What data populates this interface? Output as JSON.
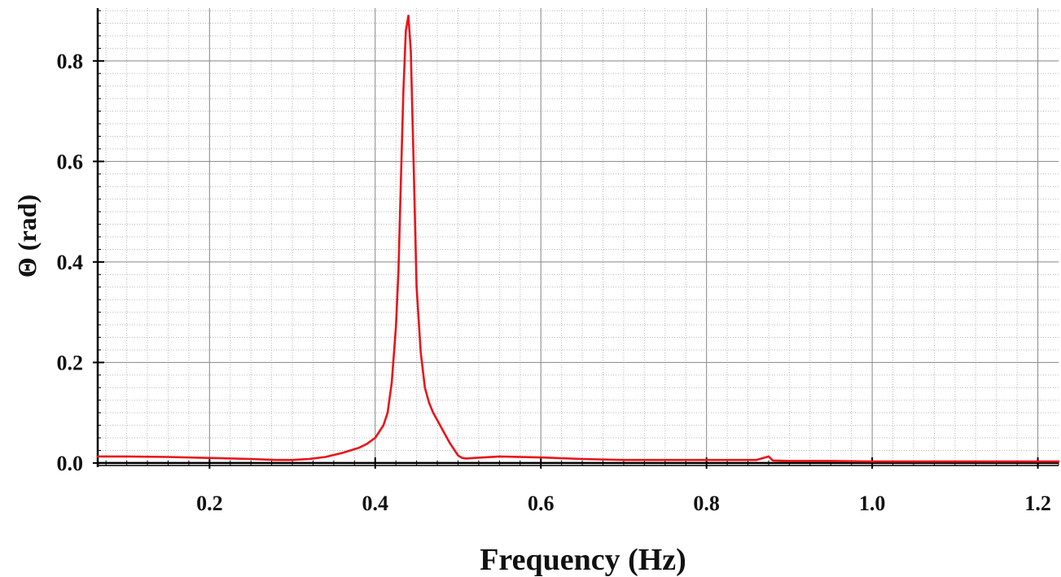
{
  "chart_data": {
    "type": "line",
    "xlabel": "Frequency (Hz)",
    "ylabel": "Θ (rad)",
    "xlim": [
      0.065,
      1.225
    ],
    "ylim": [
      -0.005,
      0.905
    ],
    "grid": true,
    "minor_grid": true,
    "x_ticks": [
      0.2,
      0.4,
      0.6,
      0.8,
      1.0,
      1.2
    ],
    "x_tick_labels": [
      "0.2",
      "0.4",
      "0.6",
      "0.8",
      "1.0",
      "1.2"
    ],
    "y_ticks": [
      0.0,
      0.2,
      0.4,
      0.6,
      0.8
    ],
    "y_tick_labels": [
      "0.0",
      "0.2",
      "0.4",
      "0.6",
      "0.8"
    ],
    "line_color": "#e8141b",
    "series": [
      {
        "name": "",
        "x": [
          0.065,
          0.1,
          0.15,
          0.2,
          0.25,
          0.28,
          0.3,
          0.32,
          0.34,
          0.36,
          0.37,
          0.38,
          0.39,
          0.4,
          0.41,
          0.415,
          0.42,
          0.425,
          0.428,
          0.431,
          0.434,
          0.437,
          0.44,
          0.443,
          0.446,
          0.45,
          0.455,
          0.46,
          0.465,
          0.47,
          0.48,
          0.49,
          0.5,
          0.505,
          0.51,
          0.52,
          0.55,
          0.6,
          0.65,
          0.7,
          0.8,
          0.86,
          0.875,
          0.88,
          0.9,
          0.95,
          1.0,
          1.1,
          1.225
        ],
        "y": [
          0.013,
          0.013,
          0.012,
          0.01,
          0.008,
          0.006,
          0.006,
          0.008,
          0.012,
          0.02,
          0.025,
          0.03,
          0.038,
          0.05,
          0.075,
          0.1,
          0.16,
          0.27,
          0.38,
          0.56,
          0.74,
          0.86,
          0.89,
          0.82,
          0.62,
          0.35,
          0.22,
          0.15,
          0.12,
          0.1,
          0.07,
          0.04,
          0.015,
          0.01,
          0.009,
          0.01,
          0.013,
          0.011,
          0.008,
          0.006,
          0.006,
          0.006,
          0.013,
          0.005,
          0.004,
          0.004,
          0.003,
          0.003,
          0.003
        ]
      }
    ]
  }
}
